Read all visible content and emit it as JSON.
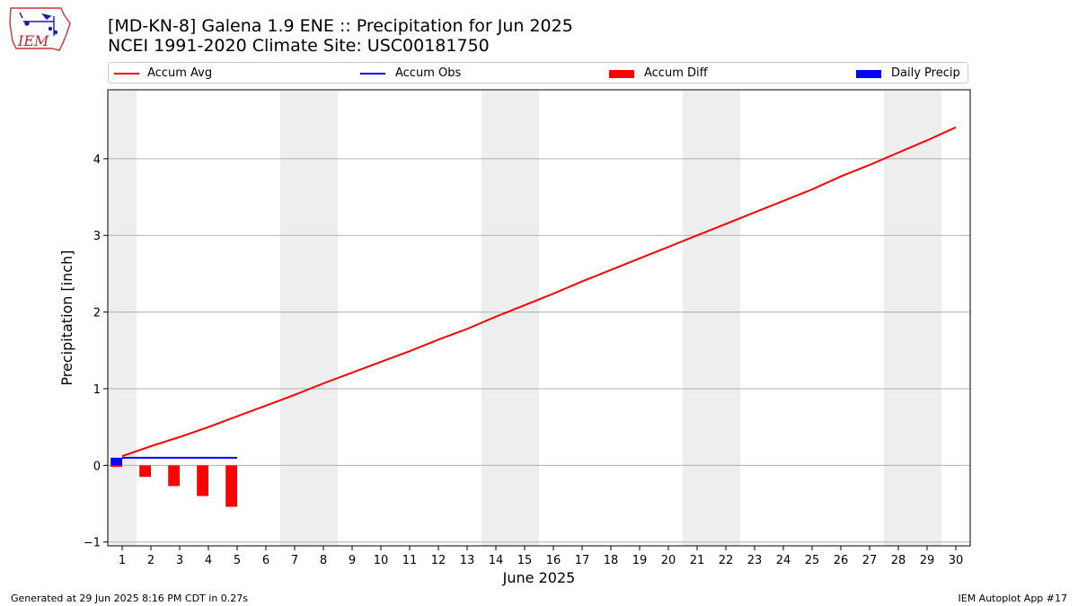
{
  "title_line1": "[MD-KN-8] Galena 1.9 ENE :: Precipitation for Jun 2025",
  "title_line2": "NCEI 1991-2020 Climate Site: USC00181750",
  "logo_text": "IEM",
  "footer_left": "Generated at 29 Jun 2025 8:16 PM CDT in 0.27s",
  "footer_right": "IEM Autoplot App #17",
  "colors": {
    "accum_avg": "#ff0000",
    "accum_obs": "#0000ff",
    "accum_diff": "#ff0000",
    "daily_precip": "#0000ff",
    "weekend_shade": "#eeeeee",
    "grid": "#b0b0b0"
  },
  "legend": [
    {
      "label": "Accum Avg",
      "kind": "line",
      "color": "#ff0000"
    },
    {
      "label": "Accum Obs",
      "kind": "line",
      "color": "#0000ff"
    },
    {
      "label": "Accum Diff",
      "kind": "bar",
      "color": "#ff0000"
    },
    {
      "label": "Daily Precip",
      "kind": "bar",
      "color": "#0000ff"
    }
  ],
  "chart_data": {
    "type": "line",
    "xlabel": "June 2025",
    "ylabel": "Precipitation [inch]",
    "xlim": [
      0.5,
      30.5
    ],
    "ylim": [
      -1.05,
      4.9
    ],
    "yticks": [
      -1,
      0,
      1,
      2,
      3,
      4
    ],
    "x": [
      1,
      2,
      3,
      4,
      5,
      6,
      7,
      8,
      9,
      10,
      11,
      12,
      13,
      14,
      15,
      16,
      17,
      18,
      19,
      20,
      21,
      22,
      23,
      24,
      25,
      26,
      27,
      28,
      29,
      30
    ],
    "x_tick_labels": [
      "1",
      "2",
      "3",
      "4",
      "5",
      "6",
      "7",
      "8",
      "9",
      "10",
      "11",
      "12",
      "13",
      "14",
      "15",
      "16",
      "17",
      "18",
      "19",
      "20",
      "21",
      "22",
      "23",
      "24",
      "25",
      "26",
      "27",
      "28",
      "29",
      "30"
    ],
    "grid": "horizontal",
    "legend_position": "top",
    "weekend_days": [
      1,
      7,
      8,
      14,
      15,
      21,
      22,
      28,
      29
    ],
    "series": [
      {
        "name": "Accum Avg",
        "type": "line",
        "values": [
          0.12,
          0.25,
          0.37,
          0.5,
          0.64,
          0.78,
          0.92,
          1.07,
          1.21,
          1.35,
          1.49,
          1.64,
          1.78,
          1.94,
          2.09,
          2.24,
          2.4,
          2.55,
          2.7,
          2.85,
          3.0,
          3.15,
          3.3,
          3.45,
          3.6,
          3.77,
          3.92,
          4.08,
          4.24,
          4.41
        ]
      },
      {
        "name": "Accum Obs",
        "type": "line",
        "x": [
          1,
          2,
          3,
          4,
          5
        ],
        "values": [
          0.1,
          0.1,
          0.1,
          0.1,
          0.1
        ]
      },
      {
        "name": "Accum Diff",
        "type": "bar",
        "x": [
          1,
          2,
          3,
          4,
          5
        ],
        "values": [
          -0.02,
          -0.15,
          -0.27,
          -0.4,
          -0.54
        ]
      },
      {
        "name": "Daily Precip",
        "type": "bar",
        "x": [
          1,
          2,
          3,
          4,
          5
        ],
        "values": [
          0.1,
          0.0,
          0.0,
          0.0,
          0.0
        ]
      }
    ]
  }
}
